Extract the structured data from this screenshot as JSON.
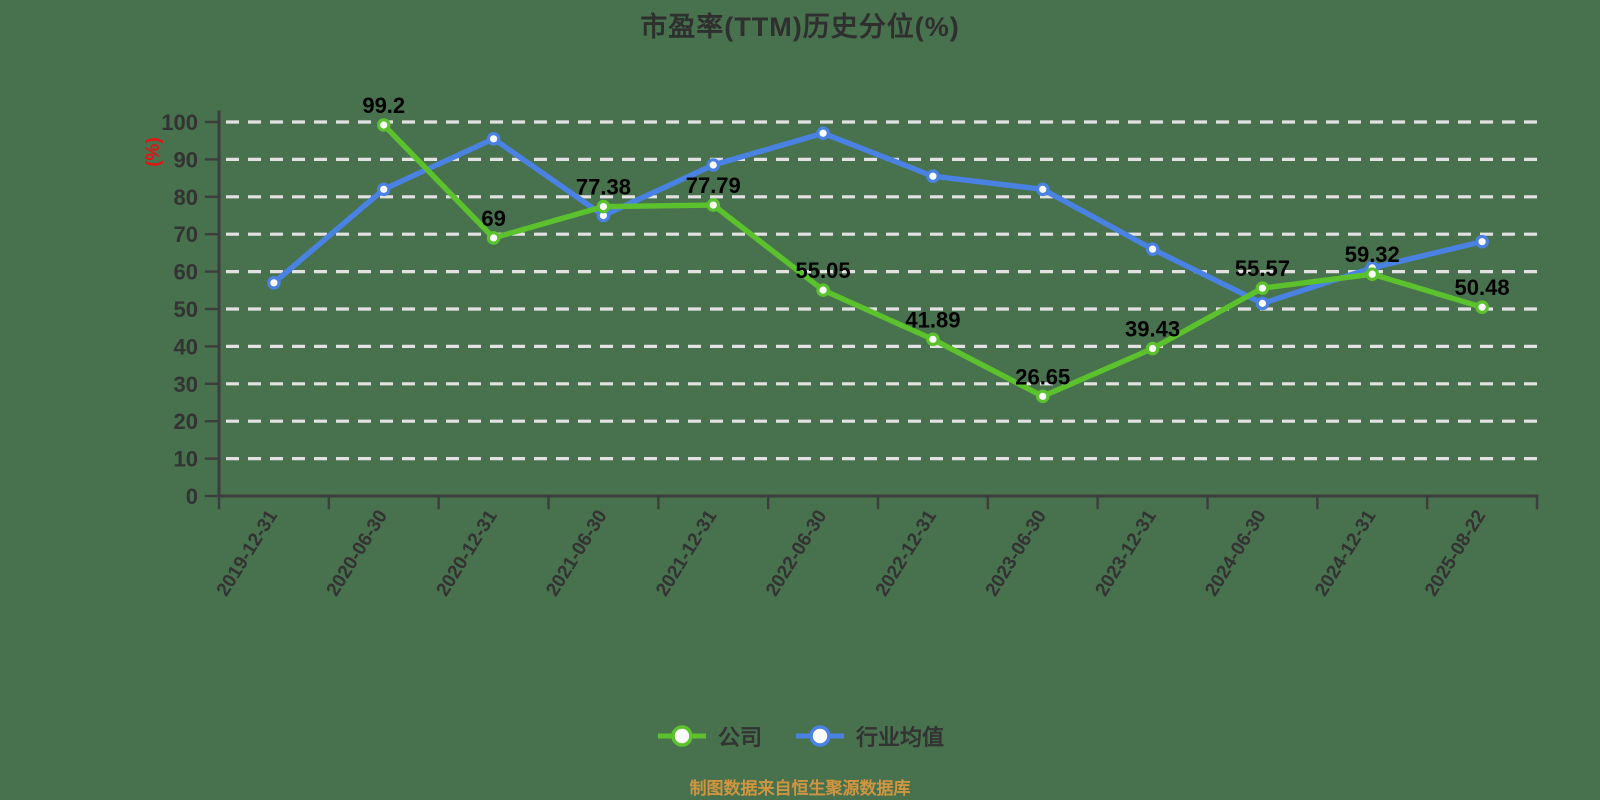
{
  "chart_data": {
    "type": "line",
    "title": "市盈率(TTM)历史分位(%)",
    "xlabel": "",
    "ylabel": "(%)",
    "ylim": [
      0,
      100
    ],
    "y_ticks": [
      0,
      10,
      20,
      30,
      40,
      50,
      60,
      70,
      80,
      90,
      100
    ],
    "grid": "horizontal-dashed",
    "legend_position": "bottom",
    "categories": [
      "2019-12-31",
      "2020-06-30",
      "2020-12-31",
      "2021-06-30",
      "2021-12-31",
      "2022-06-30",
      "2022-12-31",
      "2023-06-30",
      "2023-12-31",
      "2024-06-30",
      "2024-12-31",
      "2025-08-22"
    ],
    "series": [
      {
        "id": "company",
        "name": "公司",
        "color": "#5bc22e",
        "labels_shown": true,
        "values": [
          null,
          99.2,
          69,
          77.38,
          77.79,
          55.05,
          41.89,
          26.65,
          39.43,
          55.57,
          59.32,
          50.48
        ]
      },
      {
        "id": "industry",
        "name": "行业均值",
        "color": "#4a82e4",
        "labels_shown": false,
        "values": [
          57,
          82,
          95.5,
          75,
          88.5,
          97,
          85.5,
          82,
          66,
          51.5,
          61,
          68
        ]
      }
    ],
    "source_note": "制图数据来自恒生聚源数据库"
  },
  "colors": {
    "background": "#48714e",
    "grid": "#e2e2e2",
    "axis": "#3d3d3d",
    "tick_label": "#333333",
    "data_label": "#000000",
    "title": "#2f2f2f",
    "unit_label": "#e01515",
    "source_text": "#d09540",
    "legend_text": "#333333",
    "marker_fill": "#ffffff"
  }
}
